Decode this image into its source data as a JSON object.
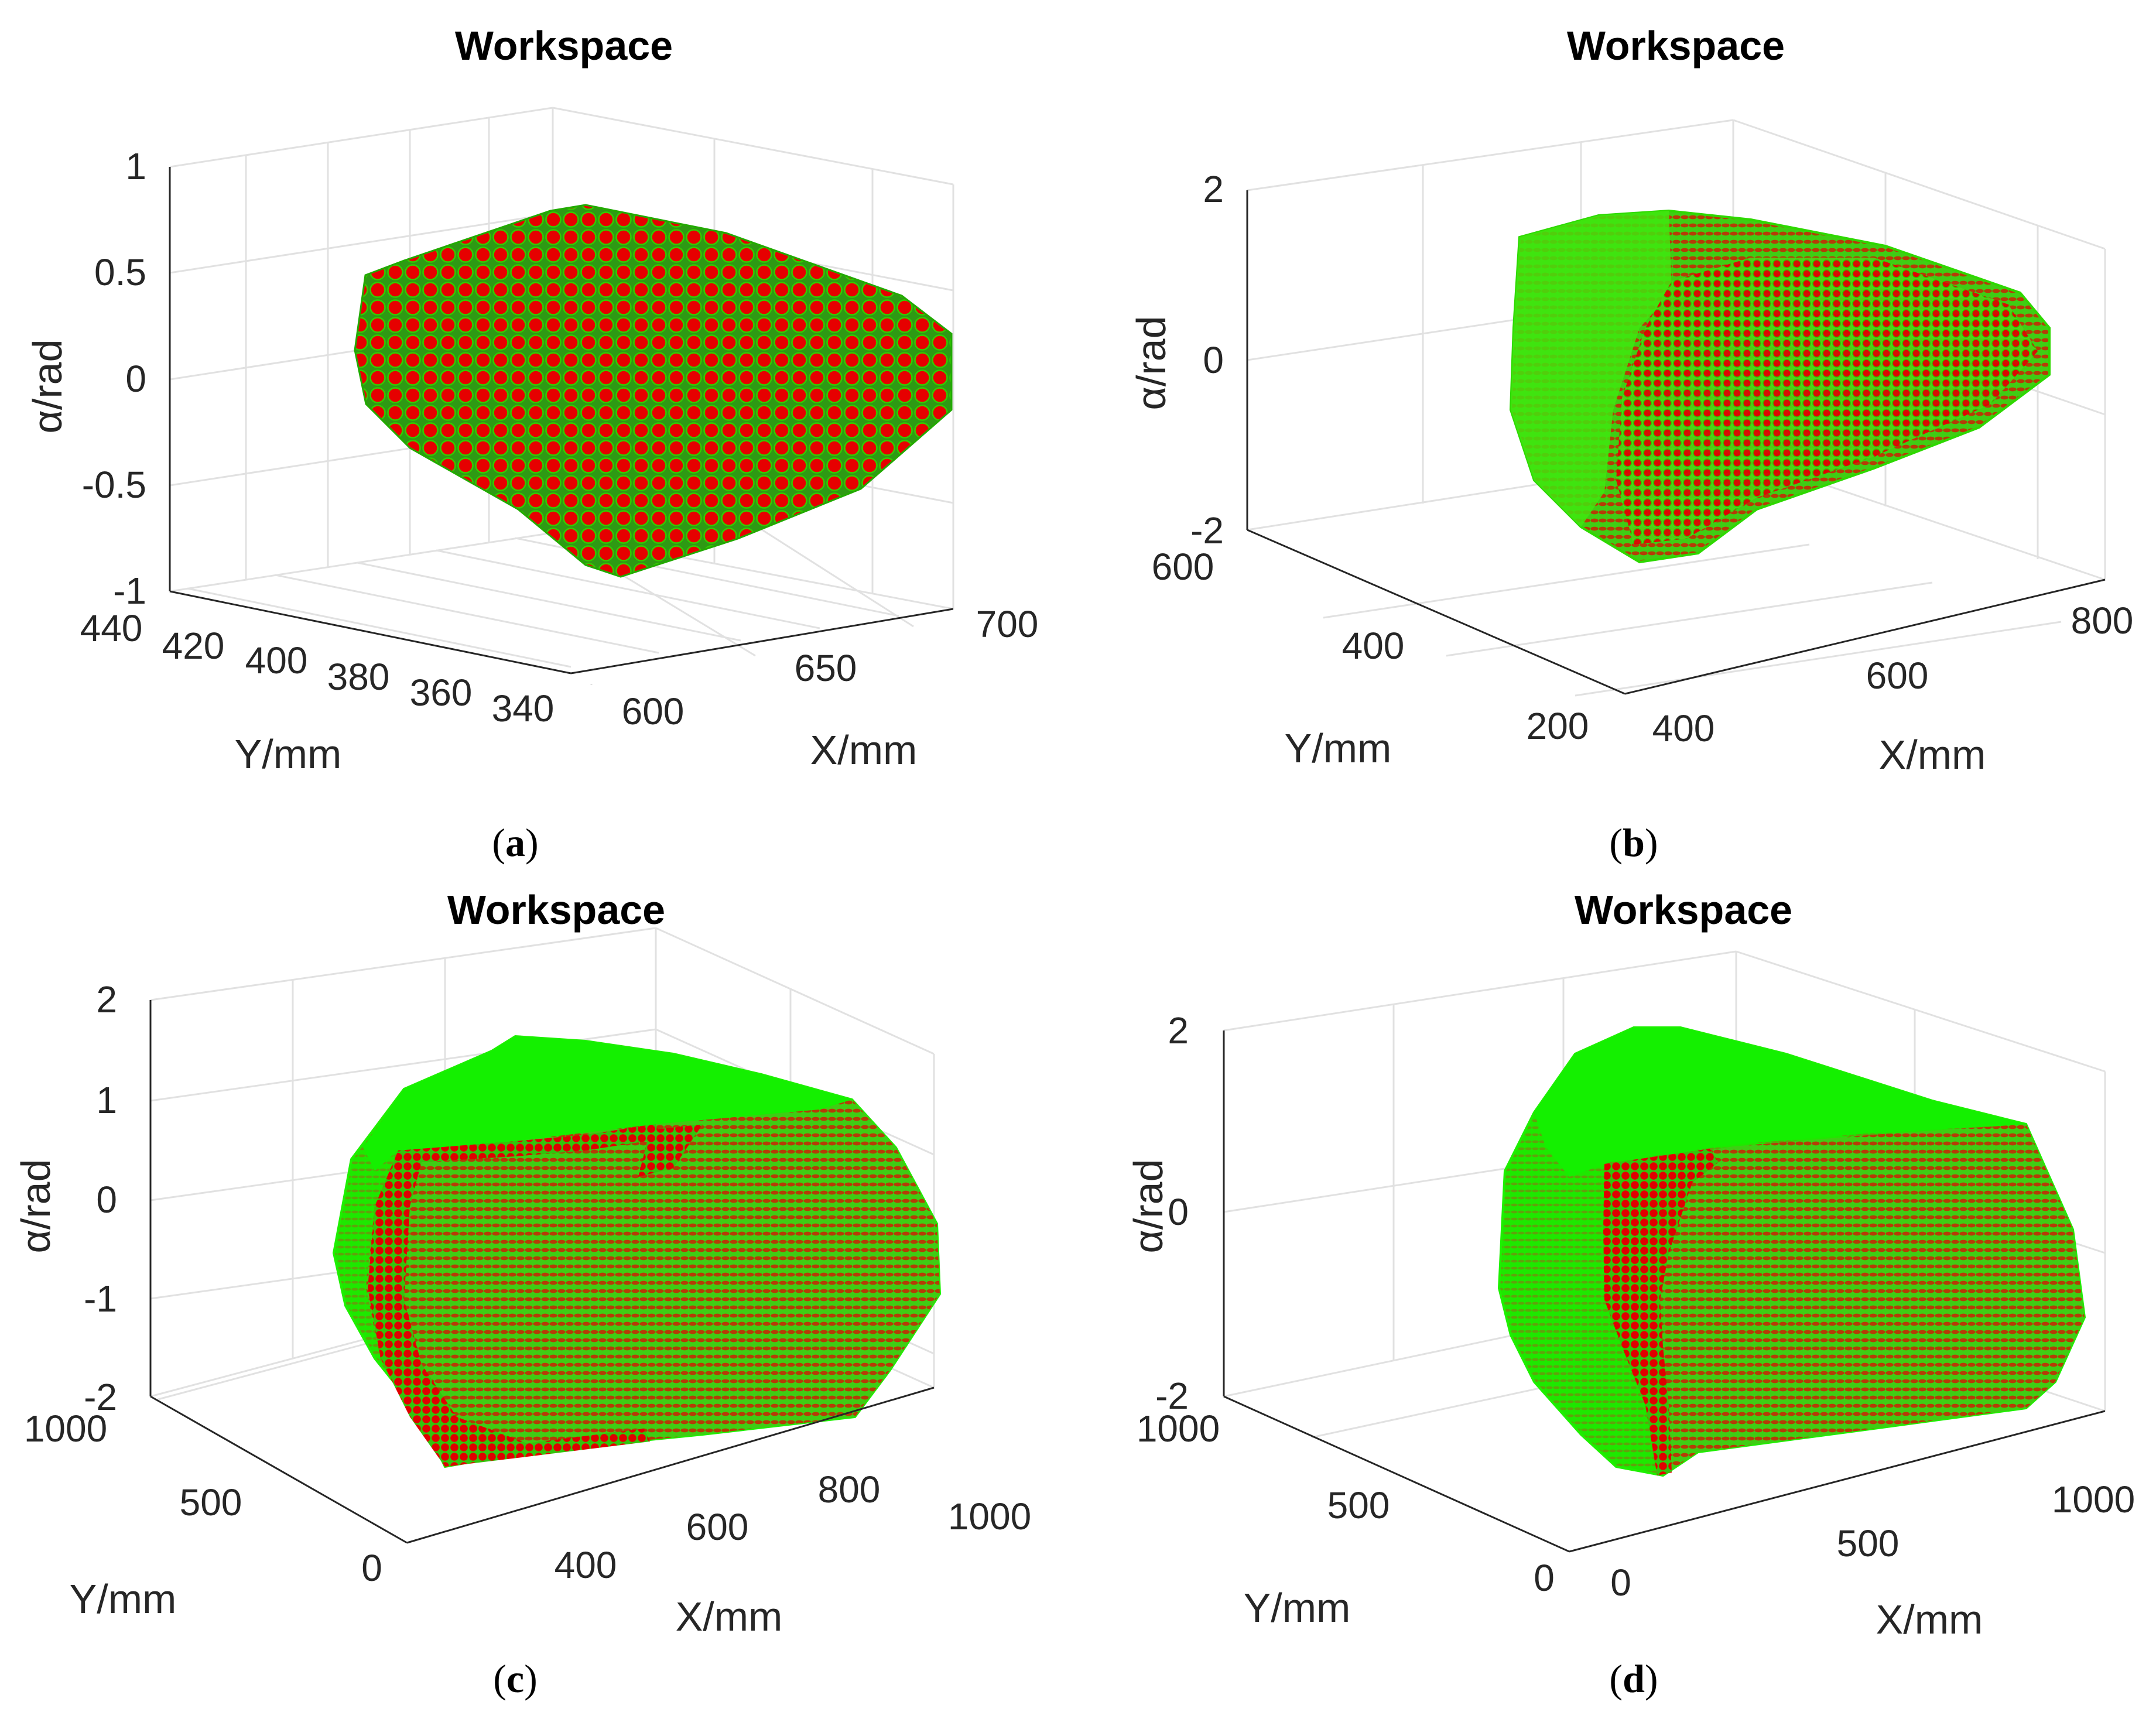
{
  "chart_data": [
    {
      "type": "scatter",
      "title": "Workspace",
      "xlabel": "X/mm",
      "ylabel": "Y/mm",
      "zlabel": "α/rad",
      "caption": "a",
      "x_ticks": [
        "600",
        "650",
        "700"
      ],
      "y_ticks": [
        "440",
        "420",
        "400",
        "380",
        "360",
        "340"
      ],
      "z_ticks": [
        "1",
        "0.5",
        "0",
        "-0.5",
        "-1"
      ],
      "xlim": [
        590,
        710
      ],
      "ylim": [
        335,
        445
      ],
      "zlim": [
        -1,
        1
      ],
      "grid": true,
      "colors": {
        "marker_face": "#e60000",
        "marker_edge": "#00cc00"
      }
    },
    {
      "type": "scatter",
      "title": "Workspace",
      "xlabel": "X/mm",
      "ylabel": "Y/mm",
      "zlabel": "α/rad",
      "caption": "b",
      "x_ticks": [
        "400",
        "600",
        "800"
      ],
      "y_ticks": [
        "600",
        "400",
        "200"
      ],
      "z_ticks": [
        "2",
        "0",
        "-2"
      ],
      "xlim": [
        390,
        850
      ],
      "ylim": [
        190,
        610
      ],
      "zlim": [
        -2,
        2
      ],
      "grid": true,
      "colors": {
        "marker_face": "#e60000",
        "marker_edge": "#00cc00"
      }
    },
    {
      "type": "scatter",
      "title": "Workspace",
      "xlabel": "X/mm",
      "ylabel": "Y/mm",
      "zlabel": "α/rad",
      "caption": "c",
      "x_ticks": [
        "400",
        "600",
        "800",
        "1000"
      ],
      "y_ticks": [
        "1000",
        "500",
        "0"
      ],
      "z_ticks": [
        "2",
        "1",
        "0",
        "-1",
        "-2"
      ],
      "xlim": [
        200,
        1050
      ],
      "ylim": [
        0,
        1050
      ],
      "zlim": [
        -2,
        2
      ],
      "grid": true,
      "colors": {
        "marker_face": "#e60000",
        "marker_edge": "#00ff00"
      }
    },
    {
      "type": "scatter",
      "title": "Workspace",
      "xlabel": "X/mm",
      "ylabel": "Y/mm",
      "zlabel": "α/rad",
      "caption": "d",
      "x_ticks": [
        "0",
        "500",
        "1000"
      ],
      "y_ticks": [
        "1000",
        "500",
        "0"
      ],
      "z_ticks": [
        "2",
        "0",
        "-2"
      ],
      "xlim": [
        0,
        1100
      ],
      "ylim": [
        0,
        1100
      ],
      "zlim": [
        -2,
        2
      ],
      "grid": true,
      "colors": {
        "marker_face": "#e60000",
        "marker_edge": "#00ff00"
      }
    }
  ]
}
